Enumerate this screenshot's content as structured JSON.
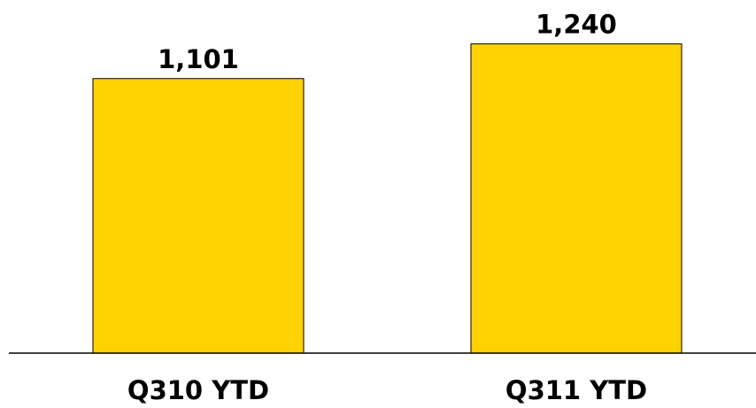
{
  "chart_data": {
    "type": "bar",
    "categories": [
      "Q310 YTD",
      "Q311 YTD"
    ],
    "values": [
      1101,
      1240
    ],
    "data_labels": [
      "1,101",
      "1,240"
    ],
    "title": "",
    "xlabel": "",
    "ylabel": "",
    "ylim": [
      0,
      1416
    ],
    "grid": false,
    "legend": "none",
    "bar_color": "#FCD200",
    "bar_edge_color": "#000000",
    "axis_color": "#000000"
  }
}
